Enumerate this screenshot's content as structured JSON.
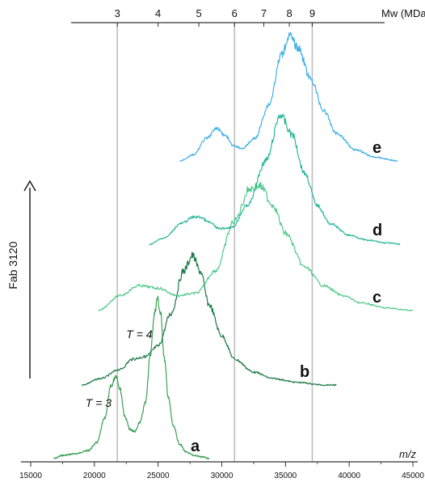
{
  "chart_data": {
    "type": "line",
    "title": "",
    "xlabel": "m/z",
    "ylabel": "Fab 3120",
    "xlim": [
      15000,
      45000
    ],
    "x_ticks": [
      15000,
      20000,
      25000,
      30000,
      35000,
      40000,
      45000
    ],
    "x_tick_labels": [
      "15000",
      "20000",
      "25000",
      "30000",
      "35000",
      "40000",
      "45000"
    ],
    "top_axis": {
      "label": "Mw (MDa)",
      "ticks": [
        {
          "label": "3",
          "mz": 21800
        },
        {
          "label": "4",
          "mz": 25000
        },
        {
          "label": "5",
          "mz": 28200
        },
        {
          "label": "6",
          "mz": 31000
        },
        {
          "label": "7",
          "mz": 33300
        },
        {
          "label": "8",
          "mz": 35300
        },
        {
          "label": "9",
          "mz": 37100
        }
      ]
    },
    "reference_lines_mz": [
      21800,
      31000,
      37100
    ],
    "annotations": [
      {
        "text": "T = 3",
        "mz": 19300,
        "trace": "a"
      },
      {
        "text": "T = 4",
        "mz": 22500,
        "trace": "a"
      }
    ],
    "colors": {
      "a": "#3aa055",
      "b": "#1d7a45",
      "c": "#4ec889",
      "d": "#29b79c",
      "e": "#40b0e6",
      "reference_line": "#bdbdbd",
      "axis": "#333333"
    },
    "series": [
      {
        "name": "a",
        "baseline": 0.0,
        "x": [
          16800,
          17500,
          18500,
          19500,
          20200,
          20800,
          21300,
          21700,
          22000,
          22400,
          22800,
          23200,
          23600,
          24000,
          24400,
          24700,
          24950,
          25200,
          25500,
          25800,
          26200,
          26700,
          27200,
          27800,
          28500,
          29000
        ],
        "y": [
          0.0,
          0.02,
          0.03,
          0.05,
          0.1,
          0.25,
          0.45,
          0.52,
          0.44,
          0.26,
          0.18,
          0.17,
          0.23,
          0.35,
          0.65,
          0.9,
          1.0,
          0.9,
          0.62,
          0.38,
          0.2,
          0.09,
          0.04,
          0.02,
          0.01,
          0.0
        ]
      },
      {
        "name": "b",
        "baseline": 0.0,
        "x": [
          19000,
          20500,
          22000,
          23000,
          24000,
          25000,
          26000,
          27000,
          27700,
          28300,
          29000,
          30000,
          31000,
          32500,
          34000,
          36000,
          38000,
          39000
        ],
        "y": [
          0.0,
          0.05,
          0.12,
          0.2,
          0.22,
          0.3,
          0.55,
          0.88,
          1.0,
          0.88,
          0.62,
          0.38,
          0.2,
          0.1,
          0.05,
          0.02,
          0.0,
          0.0
        ]
      },
      {
        "name": "c",
        "baseline": 0.0,
        "x": [
          20300,
          22000,
          23500,
          25000,
          26500,
          28000,
          29500,
          31000,
          32200,
          33000,
          34000,
          35000,
          36500,
          38000,
          39500,
          41000,
          43000,
          45000
        ],
        "y": [
          0.0,
          0.12,
          0.2,
          0.18,
          0.12,
          0.14,
          0.32,
          0.72,
          0.98,
          1.0,
          0.85,
          0.62,
          0.35,
          0.2,
          0.12,
          0.06,
          0.02,
          0.0
        ]
      },
      {
        "name": "d",
        "baseline": 0.0,
        "x": [
          24300,
          25500,
          26800,
          27800,
          28300,
          29000,
          29800,
          30800,
          32000,
          33500,
          34600,
          35500,
          36500,
          37500,
          38500,
          40000,
          41500,
          43000,
          44000
        ],
        "y": [
          0.0,
          0.05,
          0.16,
          0.21,
          0.21,
          0.17,
          0.12,
          0.13,
          0.3,
          0.65,
          1.0,
          0.85,
          0.55,
          0.3,
          0.16,
          0.07,
          0.03,
          0.01,
          0.0
        ]
      },
      {
        "name": "e",
        "baseline": 0.0,
        "x": [
          26700,
          27800,
          28800,
          29600,
          30300,
          30900,
          31600,
          32600,
          33700,
          34700,
          35300,
          36000,
          37000,
          38000,
          39000,
          40500,
          42000,
          43800
        ],
        "y": [
          0.0,
          0.05,
          0.18,
          0.26,
          0.2,
          0.12,
          0.1,
          0.18,
          0.45,
          0.85,
          1.0,
          0.9,
          0.65,
          0.4,
          0.22,
          0.09,
          0.03,
          0.0
        ]
      }
    ]
  }
}
